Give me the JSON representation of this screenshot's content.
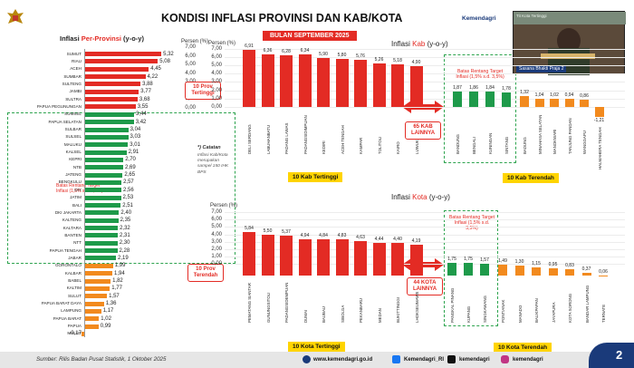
{
  "header": {
    "title": "KONDISI INFLASI PROVINSI DAN KAB/KOTA",
    "org": "Kemendagri",
    "date_banner": "BULAN SEPTEMBER 2025"
  },
  "left": {
    "title": "Inflasi ",
    "title_hl": "Per-Provinsi",
    "title_suffix": " (y-o-y)",
    "axis_label": "Persen (%)",
    "ticks": [
      "7,00",
      "6,00",
      "5,00",
      "4,00",
      "3,00",
      "2,00",
      "1,00",
      "0,00"
    ],
    "provinces": [
      {
        "name": "SUMUT",
        "value": 5.32,
        "label": "5,32"
      },
      {
        "name": "RIAU",
        "value": 5.08,
        "label": "5,08"
      },
      {
        "name": "ACEH",
        "value": 4.45,
        "label": "4,45"
      },
      {
        "name": "SUMBAR",
        "value": 4.22,
        "label": "4,22"
      },
      {
        "name": "SULTENG",
        "value": 3.88,
        "label": "3,88"
      },
      {
        "name": "JAMBI",
        "value": 3.77,
        "label": "3,77"
      },
      {
        "name": "SULTRA",
        "value": 3.68,
        "label": "3,68"
      },
      {
        "name": "PAPUA PEGUNUNGAN",
        "value": 3.55,
        "label": "3,55"
      },
      {
        "name": "SUMSEL",
        "value": 3.44,
        "label": "3,44"
      },
      {
        "name": "PAPUA SELATAN",
        "value": 3.42,
        "label": "3,42"
      },
      {
        "name": "SULBAR",
        "value": 3.04,
        "label": "3,04"
      },
      {
        "name": "SULSEL",
        "value": 3.03,
        "label": "3,03"
      },
      {
        "name": "MALUKU",
        "value": 3.01,
        "label": "3,01"
      },
      {
        "name": "KALSEL",
        "value": 2.91,
        "label": "2,91"
      },
      {
        "name": "KEPRI",
        "value": 2.7,
        "label": "2,70"
      },
      {
        "name": "NTB",
        "value": 2.69,
        "label": "2,69"
      },
      {
        "name": "JATENG",
        "value": 2.65,
        "label": "2,65"
      },
      {
        "name": "BENGKULU",
        "value": 2.57,
        "label": "2,57"
      },
      {
        "name": "DIY",
        "value": 2.56,
        "label": "2,56"
      },
      {
        "name": "JATIM",
        "value": 2.53,
        "label": "2,53"
      },
      {
        "name": "BALI",
        "value": 2.51,
        "label": "2,51"
      },
      {
        "name": "DKI JAKARTA",
        "value": 2.4,
        "label": "2,40"
      },
      {
        "name": "KALTENG",
        "value": 2.35,
        "label": "2,35"
      },
      {
        "name": "KALTARA",
        "value": 2.32,
        "label": "2,32"
      },
      {
        "name": "BANTEN",
        "value": 2.31,
        "label": "2,31"
      },
      {
        "name": "NTT",
        "value": 2.3,
        "label": "2,30"
      },
      {
        "name": "PAPUA TENGAH",
        "value": 2.28,
        "label": "2,28"
      },
      {
        "name": "JABAR",
        "value": 2.19,
        "label": "2,19"
      },
      {
        "name": "GORONTALO",
        "value": 1.99,
        "label": "1,99"
      },
      {
        "name": "KALBAR",
        "value": 1.94,
        "label": "1,94"
      },
      {
        "name": "BABEL",
        "value": 1.82,
        "label": "1,82"
      },
      {
        "name": "KALTIM",
        "value": 1.77,
        "label": "1,77"
      },
      {
        "name": "SULUT",
        "value": 1.57,
        "label": "1,57"
      },
      {
        "name": "PAPUA BARAT DAYA",
        "value": 1.36,
        "label": "1,36"
      },
      {
        "name": "LAMPUNG",
        "value": 1.17,
        "label": "1,17"
      },
      {
        "name": "PAPUA BARAT",
        "value": 1.02,
        "label": "1,02"
      },
      {
        "name": "PAPUA",
        "value": 0.99,
        "label": "0,99"
      },
      {
        "name": "MALUT",
        "value": -0.17,
        "label": "-0,17"
      }
    ],
    "top_box": "10 Prov Tertinggi",
    "bottom_box": "10 Prov Terendah",
    "target_label": "Batas Rentang Target Inflasi (1,5% s.d. 3,5%)",
    "note_title": "*) Catatan",
    "note_body": "Inflasi Kab/Kota merupakan sampel 150 IHK BPS"
  },
  "kab": {
    "title": "Inflasi ",
    "title_hl": "Kab",
    "title_suffix": " (y-o-y)",
    "axis_label": "Persen (%)",
    "ticks": [
      "7,00",
      "6,00",
      "5,00",
      "4,00",
      "3,00",
      "2,00",
      "1,00",
      "0,00"
    ],
    "top": [
      {
        "name": "DELI SERDANG",
        "value": 6.91,
        "label": "6,91"
      },
      {
        "name": "LABUHANBATU",
        "value": 6.36,
        "label": "6,36"
      },
      {
        "name": "PADANG LAWAS",
        "value": 6.28,
        "label": "6,28"
      },
      {
        "name": "PADANGSIDIMPUAN",
        "value": 6.34,
        "label": "6,34"
      },
      {
        "name": "KEDIRI",
        "value": 5.9,
        "label": "5,90"
      },
      {
        "name": "ACEH TENGAH",
        "value": 5.8,
        "label": "5,80"
      },
      {
        "name": "KAMPAR",
        "value": 5.76,
        "label": "5,76"
      },
      {
        "name": "TOLITOLI",
        "value": 5.26,
        "label": "5,26"
      },
      {
        "name": "KAIRO",
        "value": 5.18,
        "label": "5,18"
      },
      {
        "name": "LUWUK",
        "value": 4.9,
        "label": "4,90"
      }
    ],
    "mid": [
      {
        "name": "BANDUNG",
        "value": 1.87,
        "label": "1,87"
      },
      {
        "name": "BENGALI",
        "value": 1.86,
        "label": "1,86"
      },
      {
        "name": "KUNINGAN",
        "value": 1.84,
        "label": "1,84"
      },
      {
        "name": "SINTANG",
        "value": 1.78,
        "label": "1,78"
      }
    ],
    "low": [
      {
        "name": "BADUNG",
        "value": 1.32,
        "label": "1,32"
      },
      {
        "name": "MINAHASA SELATAN",
        "value": 1.04,
        "label": "1,04"
      },
      {
        "name": "MANOKWARI",
        "value": 1.02,
        "label": "1,02"
      },
      {
        "name": "TANJUNG PANDAN",
        "value": 0.94,
        "label": "0,94"
      },
      {
        "name": "WANGGAPU",
        "value": 0.86,
        "label": "0,86"
      },
      {
        "name": "HALMAHERA TENGAH",
        "value": -1.21,
        "label": "-1,21"
      }
    ],
    "lainnya": "65 KAB LAINNYA",
    "cap_top": "10 Kab Tertinggi",
    "cap_low": "10 Kab Terendah",
    "target_label": "Batas Rentang Target Inflasi (1,5% s.d. 3,5%)"
  },
  "kota": {
    "title": "Inflasi ",
    "title_hl": "Kota",
    "title_suffix": " (y-o-y)",
    "axis_label": "Persen (%)",
    "ticks": [
      "7,00",
      "6,00",
      "5,00",
      "4,00",
      "3,00",
      "2,00",
      "1,00",
      "0,00"
    ],
    "top": [
      {
        "name": "PEMATANG SIANTAR",
        "value": 5.84,
        "label": "5,84"
      },
      {
        "name": "GUNUNGSITOLI",
        "value": 5.5,
        "label": "5,50"
      },
      {
        "name": "PADANGSIDEMPUAN",
        "value": 5.37,
        "label": "5,37"
      },
      {
        "name": "DUMAI",
        "value": 4.94,
        "label": "4,94"
      },
      {
        "name": "BAUBAU",
        "value": 4.84,
        "label": "4,84"
      },
      {
        "name": "SIBOLGA",
        "value": 4.83,
        "label": "4,83"
      },
      {
        "name": "PEKANBARU",
        "value": 4.63,
        "label": "4,63"
      },
      {
        "name": "MEDAN",
        "value": 4.44,
        "label": "4,44"
      },
      {
        "name": "BUKITTINGGI",
        "value": 4.4,
        "label": "4,40"
      },
      {
        "name": "LHOKSEUMAWE",
        "value": 4.19,
        "label": "4,19"
      }
    ],
    "mid": [
      {
        "name": "PANGKAL PINANG",
        "value": 1.75,
        "label": "1,75"
      },
      {
        "name": "KUPANG",
        "value": 1.75,
        "label": "1,75"
      },
      {
        "name": "SINGKAWANG",
        "value": 1.57,
        "label": "1,57"
      }
    ],
    "low": [
      {
        "name": "PONTIANAK",
        "value": 1.49,
        "label": "1,49"
      },
      {
        "name": "MANADO",
        "value": 1.3,
        "label": "1,30"
      },
      {
        "name": "BALIKPAPAN",
        "value": 1.15,
        "label": "1,15"
      },
      {
        "name": "JAYAPURA",
        "value": 0.95,
        "label": "0,95"
      },
      {
        "name": "KOTA SORONG",
        "value": 0.83,
        "label": "0,83"
      },
      {
        "name": "BANDAR LAMPUNG",
        "value": 0.37,
        "label": "0,37"
      },
      {
        "name": "TERNATE",
        "value": 0.06,
        "label": "0,06"
      }
    ],
    "lainnya": "44 KOTA LAINNYA",
    "cap_top": "10 Kota Tertinggi",
    "cap_low": "10 Kota Terendah",
    "target_label": "Batas Rentang Target Inflasi (1,5% s.d. 3,5%)"
  },
  "footer": {
    "source": "Sumber: Rilis Badan Pusat Statistik, 1 Oktober 2025",
    "web": "www.kemendagri.go.id",
    "social1": "Kemendagri_RI",
    "social2": "kemendagri",
    "social3": "kemendagri"
  },
  "video": {
    "caption": "Sasana Bhakti Praja 2",
    "top_label": "Tit Kota Tertinggi"
  },
  "page_number": "2",
  "colors": {
    "red": "#e32b24",
    "green": "#1e9a4a",
    "orange": "#f28a1e",
    "yellow": "#ffd400"
  }
}
